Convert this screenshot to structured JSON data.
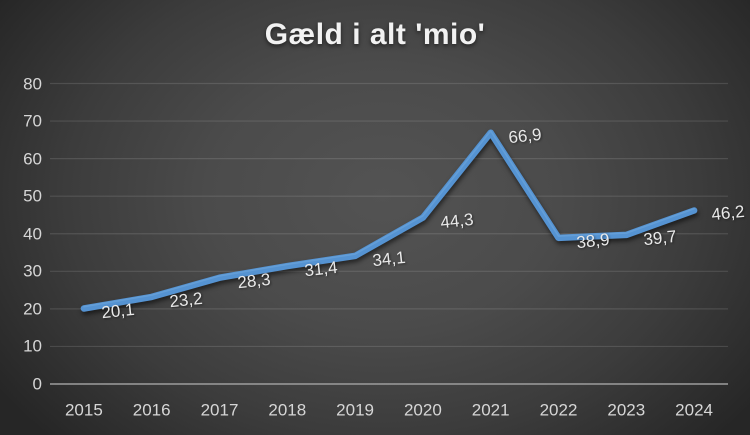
{
  "chart_data": {
    "type": "line",
    "title": "Gæld i alt 'mio'",
    "categories": [
      "2015",
      "2016",
      "2017",
      "2018",
      "2019",
      "2020",
      "2021",
      "2022",
      "2023",
      "2024"
    ],
    "values": [
      20.1,
      23.2,
      28.3,
      31.4,
      34.1,
      44.3,
      66.9,
      38.9,
      39.7,
      46.2
    ],
    "value_labels": [
      "20,1",
      "23,2",
      "28,3",
      "31,4",
      "34,1",
      "44,3",
      "66,9",
      "38,9",
      "39,7",
      "46,2"
    ],
    "series_name": "Gæld i alt",
    "xlabel": "",
    "ylabel": "",
    "ylim": [
      0,
      80
    ],
    "ytick_step": 10,
    "yticks": [
      "0",
      "10",
      "20",
      "30",
      "40",
      "50",
      "60",
      "70",
      "80"
    ],
    "grid": true,
    "legend": "none",
    "colors": {
      "line": "#5593d2",
      "line_highlight": "#6fa8dc",
      "grid": "rgba(255,255,255,0.12)",
      "axis": "#9d9d9d",
      "tick_text": "#d6d6d6",
      "data_label_text": "#e9e9e9",
      "title_text": "#f2f2f2"
    }
  }
}
